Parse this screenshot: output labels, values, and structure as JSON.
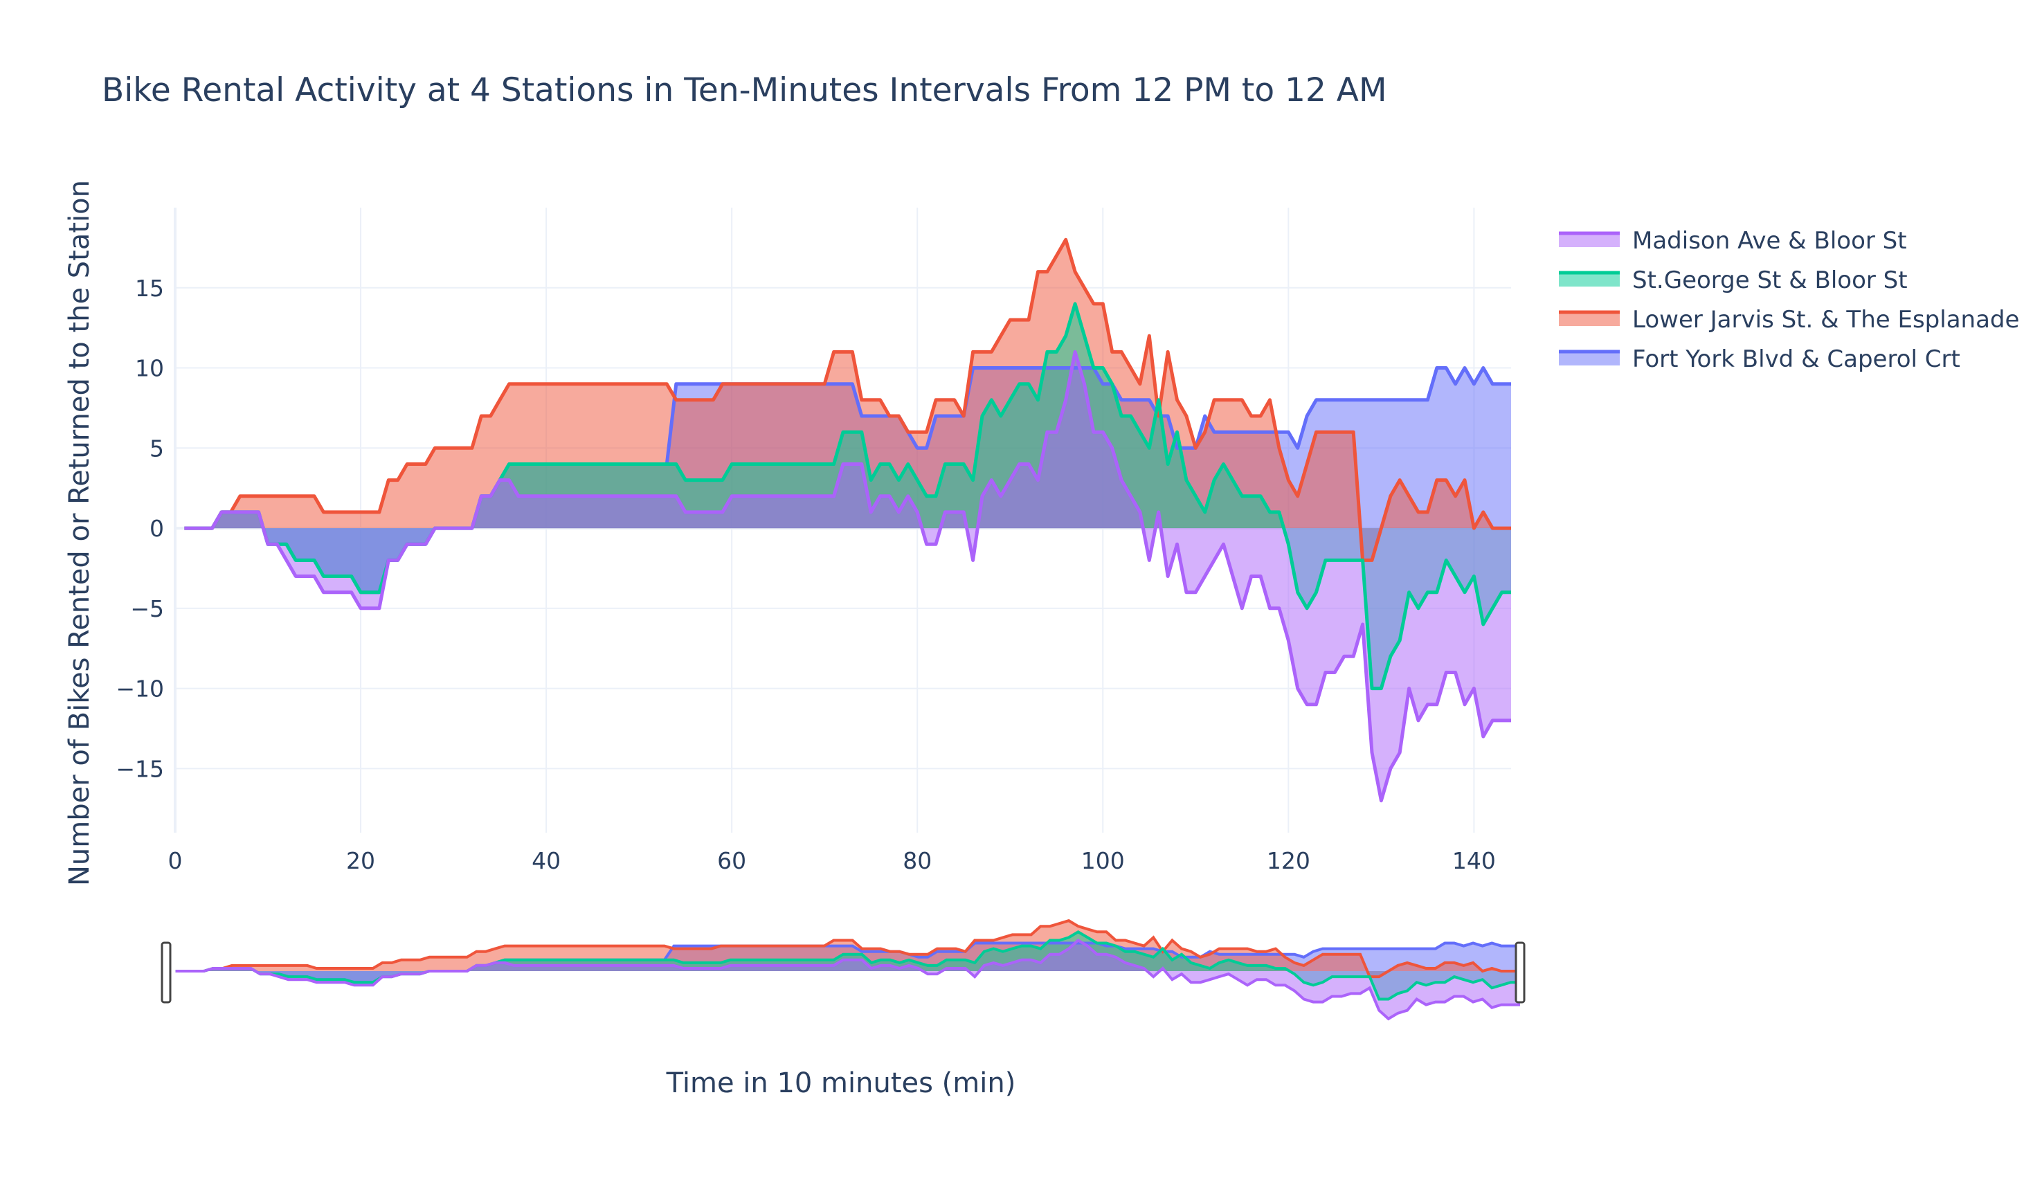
{
  "chart_data": {
    "type": "area",
    "title": "Bike Rental Activity at 4 Stations in Ten-Minutes Intervals From 12 PM to 12 AM",
    "xlabel": "Time in 10 minutes (min)",
    "ylabel": "Number of Bikes Rented or Returned to the Station",
    "xlim": [
      0,
      144
    ],
    "ylim": [
      -19,
      20
    ],
    "xticks": [
      0,
      20,
      40,
      60,
      80,
      100,
      120,
      140
    ],
    "yticks": [
      -15,
      -10,
      -5,
      0,
      5,
      10,
      15
    ],
    "grid": true,
    "legend_position": "top-right",
    "rangeslider": true,
    "x": [
      1,
      2,
      3,
      4,
      5,
      6,
      7,
      8,
      9,
      10,
      11,
      12,
      13,
      14,
      15,
      16,
      17,
      18,
      19,
      20,
      21,
      22,
      23,
      24,
      25,
      26,
      27,
      28,
      29,
      30,
      31,
      32,
      33,
      34,
      35,
      36,
      37,
      38,
      39,
      40,
      41,
      42,
      43,
      44,
      45,
      46,
      47,
      48,
      49,
      50,
      51,
      52,
      53,
      54,
      55,
      56,
      57,
      58,
      59,
      60,
      61,
      62,
      63,
      64,
      65,
      66,
      67,
      68,
      69,
      70,
      71,
      72,
      73,
      74,
      75,
      76,
      77,
      78,
      79,
      80,
      81,
      82,
      83,
      84,
      85,
      86,
      87,
      88,
      89,
      90,
      91,
      92,
      93,
      94,
      95,
      96,
      97,
      98,
      99,
      100,
      101,
      102,
      103,
      104,
      105,
      106,
      107,
      108,
      109,
      110,
      111,
      112,
      113,
      114,
      115,
      116,
      117,
      118,
      119,
      120,
      121,
      122,
      123,
      124,
      125,
      126,
      127,
      128,
      129,
      130,
      131,
      132,
      133,
      134,
      135,
      136,
      137,
      138,
      139,
      140,
      141,
      142,
      143,
      144
    ],
    "series": [
      {
        "name": "Madison Ave & Bloor St",
        "color": "#ab63fa",
        "fill": "rgba(171,99,250,0.5)",
        "values": [
          0,
          0,
          0,
          0,
          1,
          1,
          1,
          1,
          1,
          -1,
          -1,
          -2,
          -3,
          -3,
          -3,
          -4,
          -4,
          -4,
          -4,
          -5,
          -5,
          -5,
          -2,
          -2,
          -1,
          -1,
          -1,
          0,
          0,
          0,
          0,
          0,
          2,
          2,
          3,
          3,
          2,
          2,
          2,
          2,
          2,
          2,
          2,
          2,
          2,
          2,
          2,
          2,
          2,
          2,
          2,
          2,
          2,
          2,
          1,
          1,
          1,
          1,
          1,
          2,
          2,
          2,
          2,
          2,
          2,
          2,
          2,
          2,
          2,
          2,
          2,
          4,
          4,
          4,
          1,
          2,
          2,
          1,
          2,
          1,
          -1,
          -1,
          1,
          1,
          1,
          -2,
          2,
          3,
          2,
          3,
          4,
          4,
          3,
          6,
          6,
          8,
          11,
          9,
          6,
          6,
          5,
          3,
          2,
          1,
          -2,
          1,
          -3,
          -1,
          -4,
          -4,
          -3,
          -2,
          -1,
          -3,
          -5,
          -3,
          -3,
          -5,
          -5,
          -7,
          -10,
          -11,
          -11,
          -9,
          -9,
          -8,
          -8,
          -6,
          -14,
          -17,
          -15,
          -14,
          -10,
          -12,
          -11,
          -11,
          -9,
          -9,
          -11,
          -10,
          -13,
          -12,
          -12,
          -12
        ]
      },
      {
        "name": "St.George St & Bloor St",
        "color": "#00cc96",
        "fill": "rgba(0,204,150,0.5)",
        "values": [
          0,
          0,
          0,
          0,
          1,
          1,
          1,
          1,
          1,
          -1,
          -1,
          -1,
          -2,
          -2,
          -2,
          -3,
          -3,
          -3,
          -3,
          -4,
          -4,
          -4,
          -2,
          -2,
          -1,
          -1,
          -1,
          0,
          0,
          0,
          0,
          0,
          2,
          2,
          3,
          4,
          4,
          4,
          4,
          4,
          4,
          4,
          4,
          4,
          4,
          4,
          4,
          4,
          4,
          4,
          4,
          4,
          4,
          4,
          3,
          3,
          3,
          3,
          3,
          4,
          4,
          4,
          4,
          4,
          4,
          4,
          4,
          4,
          4,
          4,
          4,
          6,
          6,
          6,
          3,
          4,
          4,
          3,
          4,
          3,
          2,
          2,
          4,
          4,
          4,
          3,
          7,
          8,
          7,
          8,
          9,
          9,
          8,
          11,
          11,
          12,
          14,
          12,
          10,
          10,
          9,
          7,
          7,
          6,
          5,
          8,
          4,
          6,
          3,
          2,
          1,
          3,
          4,
          3,
          2,
          2,
          2,
          1,
          1,
          -1,
          -4,
          -5,
          -4,
          -2,
          -2,
          -2,
          -2,
          -2,
          -10,
          -10,
          -8,
          -7,
          -4,
          -5,
          -4,
          -4,
          -2,
          -3,
          -4,
          -3,
          -6,
          -5,
          -4,
          -4
        ]
      },
      {
        "name": "Lower Jarvis St. & The Esplanade",
        "color": "#ef553b",
        "fill": "rgba(239,85,59,0.5)",
        "values": [
          0,
          0,
          0,
          0,
          1,
          1,
          2,
          2,
          2,
          2,
          2,
          2,
          2,
          2,
          2,
          1,
          1,
          1,
          1,
          1,
          1,
          1,
          3,
          3,
          4,
          4,
          4,
          5,
          5,
          5,
          5,
          5,
          7,
          7,
          8,
          9,
          9,
          9,
          9,
          9,
          9,
          9,
          9,
          9,
          9,
          9,
          9,
          9,
          9,
          9,
          9,
          9,
          9,
          8,
          8,
          8,
          8,
          8,
          9,
          9,
          9,
          9,
          9,
          9,
          9,
          9,
          9,
          9,
          9,
          9,
          11,
          11,
          11,
          8,
          8,
          8,
          7,
          7,
          6,
          6,
          6,
          8,
          8,
          8,
          7,
          11,
          11,
          11,
          12,
          13,
          13,
          13,
          16,
          16,
          17,
          18,
          16,
          15,
          14,
          14,
          11,
          11,
          10,
          9,
          12,
          7,
          11,
          8,
          7,
          5,
          6,
          8,
          8,
          8,
          8,
          7,
          7,
          8,
          5,
          3,
          2,
          4,
          6,
          6,
          6,
          6,
          6,
          -2,
          -2,
          0,
          2,
          3,
          2,
          1,
          1,
          3,
          3,
          2,
          3,
          0,
          1,
          0,
          0,
          0
        ]
      },
      {
        "name": "Fort York Blvd & Caperol Crt",
        "color": "#636efa",
        "fill": "rgba(99,110,250,0.5)",
        "values": [
          0,
          0,
          0,
          0,
          1,
          1,
          1,
          1,
          1,
          -1,
          -1,
          -1,
          -2,
          -2,
          -2,
          -3,
          -3,
          -3,
          -3,
          -4,
          -4,
          -4,
          -2,
          -2,
          -1,
          -1,
          -1,
          0,
          0,
          0,
          0,
          0,
          2,
          2,
          3,
          4,
          4,
          4,
          4,
          4,
          4,
          4,
          4,
          4,
          4,
          4,
          4,
          4,
          4,
          4,
          4,
          4,
          4,
          9,
          9,
          9,
          9,
          9,
          9,
          9,
          9,
          9,
          9,
          9,
          9,
          9,
          9,
          9,
          9,
          9,
          9,
          9,
          9,
          7,
          7,
          7,
          7,
          7,
          6,
          5,
          5,
          7,
          7,
          7,
          7,
          10,
          10,
          10,
          10,
          10,
          10,
          10,
          10,
          10,
          10,
          10,
          10,
          10,
          10,
          9,
          9,
          8,
          8,
          8,
          8,
          7,
          7,
          5,
          5,
          5,
          7,
          6,
          6,
          6,
          6,
          6,
          6,
          6,
          6,
          6,
          5,
          7,
          8,
          8,
          8,
          8,
          8,
          8,
          8,
          8,
          8,
          8,
          8,
          8,
          8,
          10,
          10,
          9,
          10,
          9,
          10,
          9,
          9,
          9
        ]
      }
    ]
  }
}
